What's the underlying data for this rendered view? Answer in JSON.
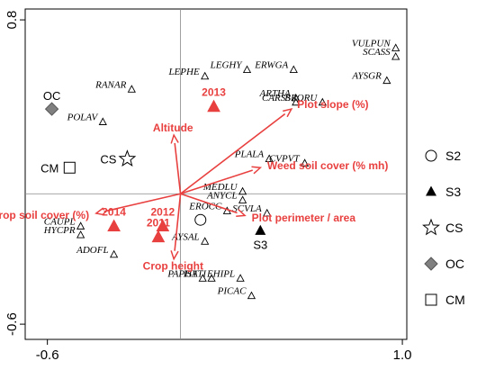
{
  "chart_data": {
    "type": "scatter",
    "title": "",
    "xlabel": "",
    "ylabel": "",
    "xlim": [
      -0.7,
      1.02
    ],
    "ylim": [
      -0.67,
      0.85
    ],
    "x_ticks": [
      {
        "value": -0.6,
        "label": "-0.6"
      },
      {
        "value": 1.0,
        "label": "1.0"
      }
    ],
    "y_ticks": [
      {
        "value": 0.8,
        "label": "0.8"
      },
      {
        "value": -0.6,
        "label": "-0.6"
      }
    ],
    "zero_lines": true,
    "species": [
      {
        "name": "VULPUN",
        "x": 0.97,
        "y": 0.67
      },
      {
        "name": "SCASS",
        "x": 0.97,
        "y": 0.63
      },
      {
        "name": "AYSGR",
        "x": 0.93,
        "y": 0.52
      },
      {
        "name": "LEGHY",
        "x": 0.3,
        "y": 0.57
      },
      {
        "name": "ERWGA",
        "x": 0.51,
        "y": 0.57
      },
      {
        "name": "LEPHE",
        "x": 0.11,
        "y": 0.54
      },
      {
        "name": "RANAR",
        "x": -0.22,
        "y": 0.48
      },
      {
        "name": "ARTHA",
        "x": 0.52,
        "y": 0.44
      },
      {
        "name": "CARSS",
        "x": 0.52,
        "y": 0.42
      },
      {
        "name": "BRORU",
        "x": 0.64,
        "y": 0.42
      },
      {
        "name": "POLAV",
        "x": -0.35,
        "y": 0.33
      },
      {
        "name": "PLALA",
        "x": 0.4,
        "y": 0.16
      },
      {
        "name": "CVPVT",
        "x": 0.56,
        "y": 0.14
      },
      {
        "name": "MEDLU",
        "x": 0.28,
        "y": 0.01
      },
      {
        "name": "ANYCL",
        "x": 0.28,
        "y": -0.03
      },
      {
        "name": "EROCC",
        "x": 0.21,
        "y": -0.08
      },
      {
        "name": "SCVLA",
        "x": 0.39,
        "y": -0.09
      },
      {
        "name": "CAUPL",
        "x": -0.45,
        "y": -0.15
      },
      {
        "name": "HYCPR",
        "x": -0.45,
        "y": -0.19
      },
      {
        "name": "AYSAL",
        "x": 0.11,
        "y": -0.22
      },
      {
        "name": "ADOFL",
        "x": -0.3,
        "y": -0.28
      },
      {
        "name": "ISATI",
        "x": 0.14,
        "y": -0.39
      },
      {
        "name": "EHIPL",
        "x": 0.27,
        "y": -0.39
      },
      {
        "name": "PAPHY",
        "x": 0.1,
        "y": -0.39
      },
      {
        "name": "PICAC",
        "x": 0.32,
        "y": -0.47
      }
    ],
    "variables": [
      {
        "name": "Plot slope (%)",
        "x": 0.5,
        "y": 0.39
      },
      {
        "name": "Weed soil cover (% mh)",
        "x": 0.36,
        "y": 0.12
      },
      {
        "name": "Altitude",
        "x": -0.03,
        "y": 0.27
      },
      {
        "name": "Crop soil cover (%)",
        "x": -0.38,
        "y": -0.09
      },
      {
        "name": "Plot perimeter / area",
        "x": 0.29,
        "y": -0.1
      },
      {
        "name": "Crop height",
        "x": -0.03,
        "y": -0.3
      }
    ],
    "years": [
      {
        "label": "2013",
        "x": 0.15,
        "y": 0.4
      },
      {
        "label": "2014",
        "x": -0.3,
        "y": -0.15
      },
      {
        "label": "2012",
        "x": -0.08,
        "y": -0.15
      },
      {
        "label": "2011",
        "x": -0.1,
        "y": -0.2
      }
    ],
    "groups": [
      {
        "label": "OC",
        "marker": "diamond",
        "x": -0.58,
        "y": 0.39
      },
      {
        "label": "CS",
        "marker": "star",
        "x": -0.24,
        "y": 0.16
      },
      {
        "label": "CM",
        "marker": "square",
        "x": -0.5,
        "y": 0.12
      },
      {
        "label": "S2",
        "marker": "circle",
        "x": 0.09,
        "y": -0.12
      },
      {
        "label": "S3",
        "marker": "triangle",
        "x": 0.36,
        "y": -0.17
      }
    ],
    "legend": {
      "placement": "right",
      "entries": [
        {
          "label": "S2",
          "marker": "circle"
        },
        {
          "label": "S3",
          "marker": "triangle"
        },
        {
          "label": "CS",
          "marker": "star"
        },
        {
          "label": "OC",
          "marker": "diamond"
        },
        {
          "label": "CM",
          "marker": "square"
        }
      ]
    },
    "colors": {
      "arrows": "#e8403f",
      "year_markers": "#e8403f",
      "diamond_fill": "#808080",
      "axis": "#000000",
      "zero_line": "#888888"
    }
  }
}
